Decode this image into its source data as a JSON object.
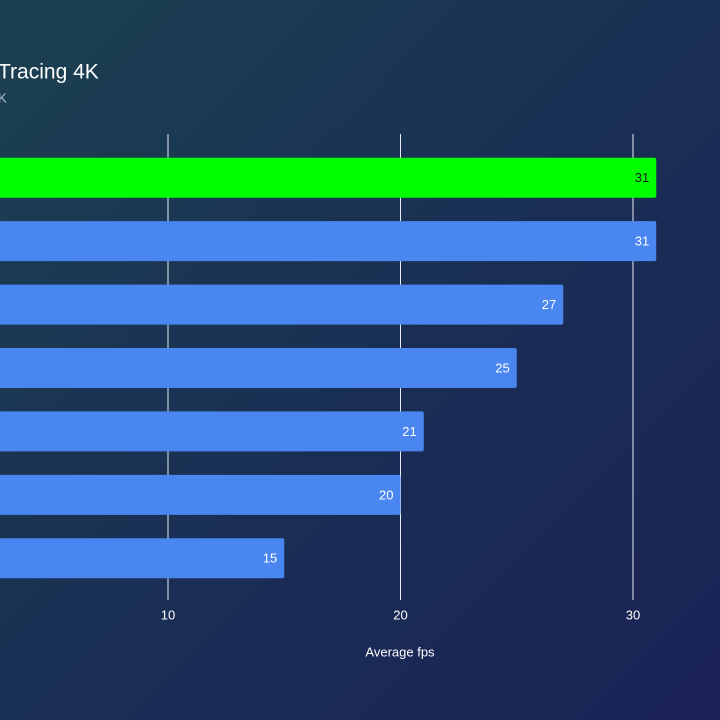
{
  "chart_data": {
    "type": "bar",
    "orientation": "horizontal",
    "title": "Tracing 4K",
    "subtitle": "K",
    "x_label": "Average fps",
    "categories": [
      null,
      null,
      null,
      null,
      null,
      null,
      null
    ],
    "values": [
      31,
      31,
      27,
      25,
      21,
      20,
      15
    ],
    "colors": [
      "#00ff00",
      "#4a86f0",
      "#4a86f0",
      "#4a86f0",
      "#4a86f0",
      "#4a86f0",
      "#4a86f0"
    ],
    "xlim": [
      0,
      33
    ],
    "xticks": [
      10,
      20,
      30
    ],
    "grid": true
  }
}
